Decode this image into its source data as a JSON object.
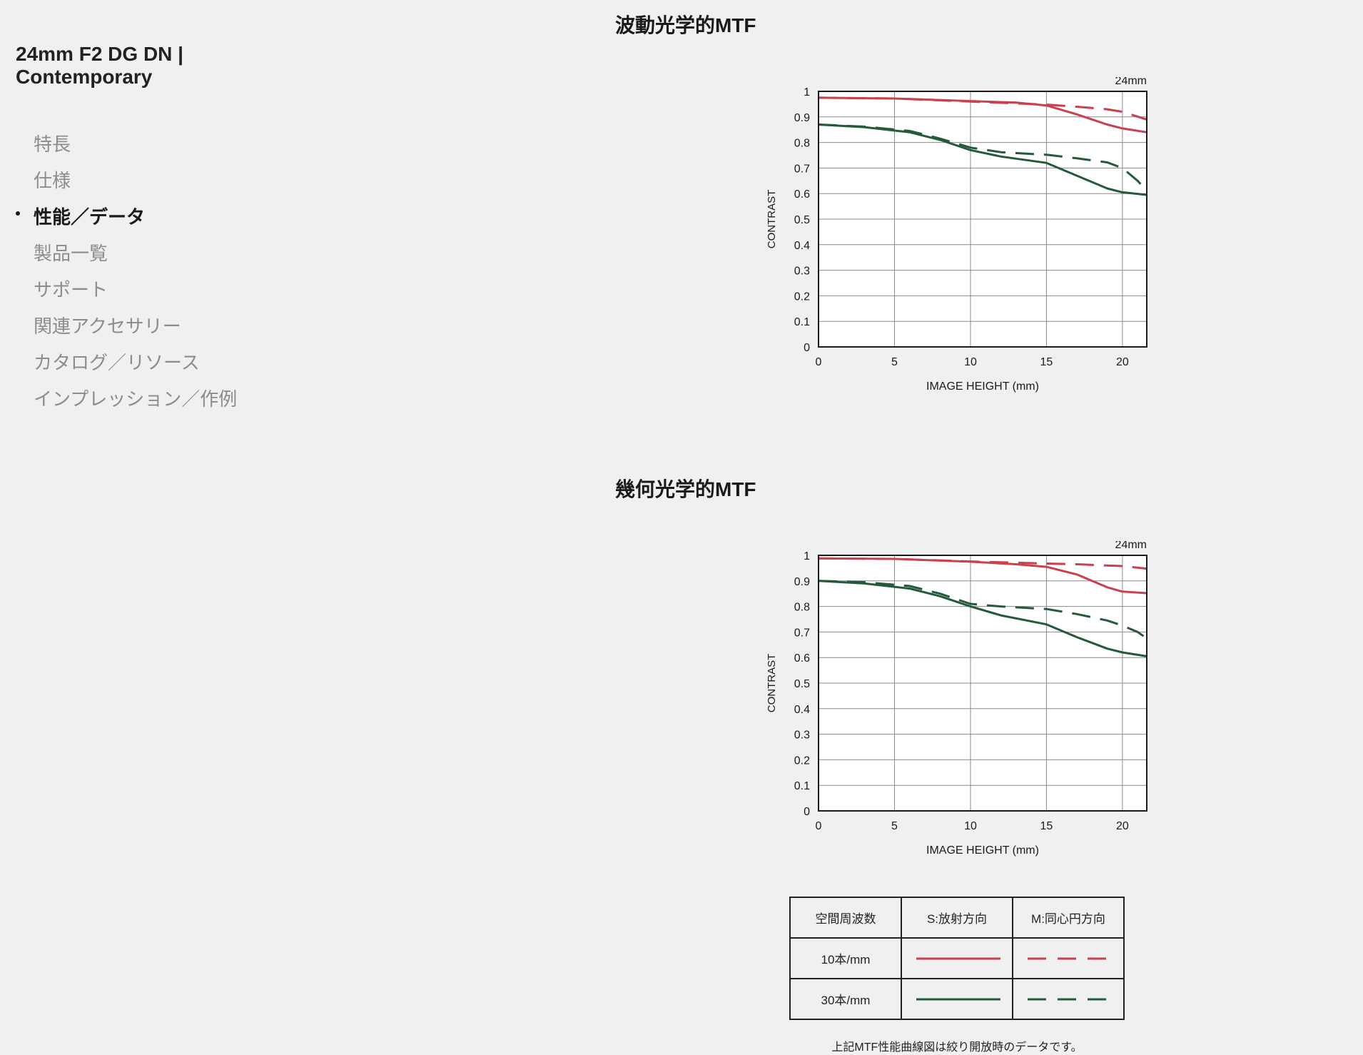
{
  "product": {
    "title": "24mm F2 DG DN | Contemporary"
  },
  "nav": {
    "items": [
      {
        "label": "特長",
        "active": false
      },
      {
        "label": "仕様",
        "active": false
      },
      {
        "label": "性能／データ",
        "active": true
      },
      {
        "label": "製品一覧",
        "active": false
      },
      {
        "label": "サポート",
        "active": false
      },
      {
        "label": "関連アクセサリー",
        "active": false
      },
      {
        "label": "カタログ／リソース",
        "active": false
      },
      {
        "label": "インプレッション／作例",
        "active": false
      }
    ]
  },
  "sections": {
    "diffraction_title": "波動光学的MTF",
    "geometric_title": "幾何光学的MTF"
  },
  "colors": {
    "red": "#c8414c",
    "green": "#245a3a"
  },
  "chart_data": [
    {
      "type": "line",
      "focal_label": "24mm",
      "xlabel": "IMAGE HEIGHT (mm)",
      "ylabel": "CONTRAST",
      "xlim": [
        0,
        21.6
      ],
      "ylim": [
        0,
        1
      ],
      "xticks": [
        0,
        5,
        10,
        15,
        20
      ],
      "yticks": [
        0,
        0.1,
        0.2,
        0.3,
        0.4,
        0.5,
        0.6,
        0.7,
        0.8,
        0.9,
        1
      ],
      "ytick_labels": [
        "0",
        "0.1",
        "0.2",
        "0.3",
        "0.4",
        "0.5",
        "0.6",
        "0.7",
        "0.8",
        "0.9",
        "1"
      ],
      "grid": true,
      "series": [
        {
          "color": "red",
          "dashed": false,
          "x": [
            0,
            5,
            10,
            13,
            15,
            17,
            19,
            20,
            21.6
          ],
          "y": [
            0.975,
            0.972,
            0.962,
            0.956,
            0.945,
            0.91,
            0.87,
            0.855,
            0.84
          ]
        },
        {
          "color": "red",
          "dashed": true,
          "x": [
            0,
            5,
            10,
            15,
            17,
            19,
            20,
            21.6
          ],
          "y": [
            0.975,
            0.972,
            0.96,
            0.948,
            0.94,
            0.93,
            0.92,
            0.89
          ]
        },
        {
          "color": "green",
          "dashed": false,
          "x": [
            0,
            3,
            6,
            8,
            10,
            12,
            15,
            17,
            19,
            20,
            21.6
          ],
          "y": [
            0.87,
            0.86,
            0.84,
            0.81,
            0.77,
            0.745,
            0.72,
            0.67,
            0.62,
            0.605,
            0.595
          ]
        },
        {
          "color": "green",
          "dashed": true,
          "x": [
            0,
            3,
            6,
            8,
            10,
            12,
            15,
            17,
            19,
            20,
            21,
            21.6
          ],
          "y": [
            0.87,
            0.862,
            0.845,
            0.815,
            0.78,
            0.762,
            0.752,
            0.738,
            0.722,
            0.7,
            0.65,
            0.61
          ]
        }
      ]
    },
    {
      "type": "line",
      "focal_label": "24mm",
      "xlabel": "IMAGE HEIGHT (mm)",
      "ylabel": "CONTRAST",
      "xlim": [
        0,
        21.6
      ],
      "ylim": [
        0,
        1
      ],
      "xticks": [
        0,
        5,
        10,
        15,
        20
      ],
      "yticks": [
        0,
        0.1,
        0.2,
        0.3,
        0.4,
        0.5,
        0.6,
        0.7,
        0.8,
        0.9,
        1
      ],
      "ytick_labels": [
        "0",
        "0.1",
        "0.2",
        "0.3",
        "0.4",
        "0.5",
        "0.6",
        "0.7",
        "0.8",
        "0.9",
        "1"
      ],
      "grid": true,
      "series": [
        {
          "color": "red",
          "dashed": false,
          "x": [
            0,
            5,
            10,
            13,
            15,
            17,
            19,
            20,
            21.6
          ],
          "y": [
            0.988,
            0.986,
            0.975,
            0.965,
            0.955,
            0.925,
            0.875,
            0.858,
            0.852
          ]
        },
        {
          "color": "red",
          "dashed": true,
          "x": [
            0,
            5,
            10,
            15,
            17,
            19,
            20,
            21.6
          ],
          "y": [
            0.988,
            0.986,
            0.976,
            0.968,
            0.965,
            0.96,
            0.958,
            0.948
          ]
        },
        {
          "color": "green",
          "dashed": false,
          "x": [
            0,
            3,
            6,
            8,
            10,
            12,
            15,
            17,
            19,
            20,
            21.6
          ],
          "y": [
            0.9,
            0.89,
            0.87,
            0.84,
            0.8,
            0.765,
            0.73,
            0.68,
            0.635,
            0.62,
            0.605
          ]
        },
        {
          "color": "green",
          "dashed": true,
          "x": [
            0,
            3,
            6,
            8,
            10,
            12,
            15,
            17,
            19,
            20,
            21,
            21.6
          ],
          "y": [
            0.9,
            0.895,
            0.88,
            0.85,
            0.81,
            0.8,
            0.79,
            0.77,
            0.745,
            0.725,
            0.7,
            0.675
          ]
        }
      ]
    }
  ],
  "legend": {
    "header": [
      "空間周波数",
      "S:放射方向",
      "M:同心円方向"
    ],
    "rows": [
      {
        "label": "10本/mm",
        "color": "red"
      },
      {
        "label": "30本/mm",
        "color": "green"
      }
    ]
  },
  "note": "上記MTF性能曲線図は絞り開放時のデータです。"
}
